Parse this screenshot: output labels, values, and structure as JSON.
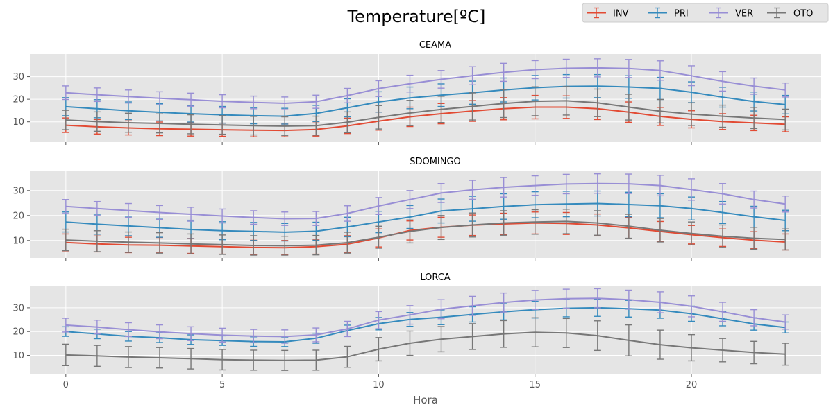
{
  "chart_data": {
    "type": "line",
    "title": "Temperature[ºC]",
    "xlabel": "Hora",
    "legend_position": "top-right",
    "grid": true,
    "x": [
      0,
      1,
      2,
      3,
      4,
      5,
      6,
      7,
      8,
      9,
      10,
      11,
      12,
      13,
      14,
      15,
      16,
      17,
      18,
      19,
      20,
      21,
      22,
      23
    ],
    "xlim": [
      -1.15,
      24.15
    ],
    "xticks": [
      0,
      5,
      10,
      15,
      20
    ],
    "yticks": [
      10,
      20,
      30
    ],
    "legend": [
      {
        "name": "INV",
        "color": "#E24A33"
      },
      {
        "name": "PRI",
        "color": "#348ABD"
      },
      {
        "name": "VER",
        "color": "#988ED5"
      },
      {
        "name": "OTO",
        "color": "#777777"
      }
    ],
    "panels": [
      {
        "title": "CEAMA",
        "ylim": [
          1,
          40
        ],
        "series": [
          {
            "name": "INV",
            "values": [
              8.5,
              7.8,
              7.3,
              6.9,
              6.7,
              6.5,
              6.3,
              6.2,
              6.6,
              8.2,
              10.3,
              12.2,
              13.6,
              14.8,
              15.8,
              16.5,
              16.5,
              15.8,
              14.3,
              12.4,
              11.1,
              10.1,
              9.5,
              8.9
            ],
            "errors": [
              3.2,
              3.2,
              3.1,
              3.0,
              3.0,
              2.9,
              2.9,
              2.8,
              2.9,
              3.4,
              4.0,
              4.3,
              4.5,
              4.6,
              4.9,
              5.2,
              5.0,
              4.8,
              4.5,
              4.0,
              3.8,
              3.5,
              3.4,
              3.3
            ]
          },
          {
            "name": "PRI",
            "values": [
              16.7,
              15.8,
              14.9,
              14.2,
              13.6,
              13.1,
              12.7,
              12.5,
              13.7,
              16.2,
              18.8,
              20.6,
              21.8,
              22.9,
              24.1,
              25.1,
              25.7,
              25.8,
              25.4,
              24.8,
              23.1,
              20.9,
              19.0,
              17.6
            ],
            "errors": [
              4.0,
              4.0,
              3.9,
              3.8,
              3.7,
              3.7,
              3.6,
              3.5,
              3.6,
              4.0,
              4.5,
              4.8,
              5.0,
              5.1,
              5.3,
              5.4,
              5.2,
              5.1,
              5.0,
              4.9,
              4.6,
              4.4,
              4.2,
              4.1
            ]
          },
          {
            "name": "VER",
            "values": [
              22.9,
              22.0,
              21.2,
              20.4,
              19.8,
              19.1,
              18.6,
              18.2,
              18.9,
              21.6,
              24.7,
              26.9,
              28.8,
              30.4,
              31.9,
              33.1,
              33.7,
              33.9,
              33.6,
              32.7,
              30.4,
              27.9,
              25.8,
              24.1
            ],
            "errors": [
              3.0,
              3.0,
              2.9,
              2.9,
              2.9,
              2.9,
              2.8,
              2.8,
              2.9,
              3.2,
              3.5,
              3.7,
              3.9,
              4.0,
              4.0,
              4.0,
              4.0,
              4.0,
              4.0,
              4.3,
              4.4,
              4.3,
              3.6,
              3.1
            ]
          },
          {
            "name": "OTO",
            "values": [
              10.8,
              10.1,
              9.6,
              9.3,
              8.9,
              8.6,
              8.3,
              8.1,
              8.3,
              9.8,
              12.0,
              13.9,
              15.5,
              16.8,
              18.1,
              19.1,
              19.3,
              18.4,
              16.5,
              14.7,
              13.4,
              12.5,
              11.7,
              11.0
            ],
            "errors": [
              4.3,
              4.3,
              4.2,
              4.2,
              4.2,
              4.1,
              4.1,
              4.1,
              4.2,
              4.6,
              5.2,
              5.6,
              5.8,
              6.0,
              6.2,
              6.4,
              6.3,
              6.1,
              5.7,
              5.2,
              5.0,
              4.9,
              4.7,
              4.6
            ]
          }
        ]
      },
      {
        "title": "SDOMINGO",
        "ylim": [
          3,
          38
        ],
        "series": [
          {
            "name": "INV",
            "values": [
              9.2,
              8.6,
              8.2,
              8.1,
              7.8,
              7.5,
              7.2,
              7.1,
              7.5,
              8.5,
              11.0,
              14.0,
              15.3,
              16.1,
              16.6,
              17.0,
              16.8,
              16.2,
              15.0,
              13.6,
              12.3,
              11.1,
              10.1,
              9.4
            ],
            "errors": [
              3.4,
              3.2,
              3.1,
              3.1,
              3.0,
              3.0,
              2.9,
              2.9,
              3.0,
              3.4,
              3.6,
              3.8,
              4.0,
              4.1,
              4.3,
              4.4,
              4.4,
              4.4,
              4.2,
              4.0,
              3.7,
              3.5,
              3.4,
              3.2
            ]
          },
          {
            "name": "PRI",
            "values": [
              17.4,
              16.5,
              15.8,
              15.1,
              14.4,
              13.9,
              13.6,
              13.3,
              13.7,
              15.4,
              17.4,
              19.4,
              21.8,
              22.7,
              23.6,
              24.3,
              24.6,
              24.8,
              24.4,
              23.9,
              22.8,
              21.2,
              19.5,
              18.0
            ],
            "errors": [
              4.0,
              4.0,
              3.9,
              3.8,
              3.7,
              3.6,
              3.6,
              3.5,
              3.6,
              3.9,
              4.3,
              4.6,
              4.8,
              5.0,
              5.1,
              5.2,
              5.1,
              5.0,
              4.9,
              4.8,
              4.6,
              4.4,
              4.2,
              4.1
            ]
          },
          {
            "name": "VER",
            "values": [
              23.6,
              22.8,
              22.0,
              21.2,
              20.5,
              19.8,
              19.2,
              18.7,
              18.8,
              20.8,
              23.8,
              26.4,
              29.0,
              30.3,
              31.3,
              32.0,
              32.6,
              32.8,
              32.7,
              32.0,
              30.4,
              28.7,
              26.4,
              24.6
            ],
            "errors": [
              2.8,
              2.8,
              2.8,
              2.8,
              2.8,
              2.8,
              2.7,
              2.7,
              2.8,
              3.1,
              3.4,
              3.6,
              3.8,
              3.8,
              3.9,
              3.9,
              3.9,
              3.9,
              3.9,
              4.1,
              4.3,
              4.1,
              3.4,
              3.2
            ]
          },
          {
            "name": "OTO",
            "values": [
              10.2,
              9.7,
              9.3,
              9.0,
              8.6,
              8.3,
              8.0,
              7.9,
              8.1,
              9.1,
              11.3,
              13.6,
              15.2,
              16.2,
              17.0,
              17.4,
              17.6,
              17.0,
              15.7,
              14.1,
              12.8,
              11.7,
              10.9,
              10.4
            ],
            "errors": [
              4.3,
              4.2,
              4.1,
              4.1,
              4.0,
              3.9,
              3.9,
              3.8,
              3.9,
              4.2,
              4.4,
              4.6,
              4.8,
              4.8,
              4.9,
              4.9,
              4.9,
              4.9,
              4.8,
              4.7,
              4.6,
              4.5,
              4.4,
              4.2
            ]
          }
        ]
      },
      {
        "title": "LORCA",
        "ylim": [
          2,
          39
        ],
        "series": [
          {
            "name": "INV",
            "values": [],
            "errors": []
          },
          {
            "name": "PRI",
            "values": [
              20.0,
              19.0,
              18.0,
              17.4,
              16.6,
              16.2,
              15.8,
              15.7,
              17.2,
              20.4,
              23.3,
              25.1,
              26.0,
              27.2,
              28.3,
              29.2,
              29.8,
              30.0,
              29.6,
              29.0,
              27.5,
              25.4,
              23.2,
              21.7
            ],
            "errors": [
              2.0,
              2.0,
              2.0,
              2.0,
              2.0,
              2.0,
              2.0,
              2.0,
              2.1,
              2.3,
              2.6,
              2.9,
              3.1,
              3.2,
              3.4,
              3.5,
              3.6,
              3.6,
              3.5,
              3.4,
              3.2,
              3.0,
              2.6,
              2.3
            ]
          },
          {
            "name": "VER",
            "values": [
              22.7,
              21.9,
              20.8,
              19.9,
              19.1,
              18.5,
              18.1,
              17.9,
              18.6,
              21.1,
              24.8,
              27.0,
              29.4,
              30.8,
              32.2,
              33.3,
              33.8,
              34.0,
              33.4,
              32.3,
              30.6,
              28.3,
              25.8,
              24.0
            ],
            "errors": [
              2.9,
              2.9,
              2.9,
              2.9,
              2.9,
              2.9,
              2.8,
              2.8,
              2.9,
              3.2,
              3.6,
              3.9,
              4.0,
              4.0,
              4.0,
              4.0,
              4.0,
              4.0,
              4.0,
              4.4,
              4.4,
              4.0,
              3.4,
              3.0
            ]
          },
          {
            "name": "OTO",
            "values": [
              10.2,
              9.8,
              9.3,
              9.0,
              8.6,
              8.2,
              8.0,
              7.9,
              8.0,
              9.4,
              12.6,
              15.1,
              16.8,
              17.9,
              19.0,
              19.7,
              19.4,
              18.3,
              16.3,
              14.5,
              13.2,
              12.2,
              11.2,
              10.5
            ],
            "errors": [
              4.5,
              4.4,
              4.4,
              4.3,
              4.3,
              4.3,
              4.2,
              4.2,
              4.2,
              4.4,
              4.9,
              5.1,
              5.3,
              5.4,
              5.6,
              6.1,
              6.1,
              6.2,
              6.5,
              6.1,
              5.5,
              4.9,
              4.7,
              4.6
            ]
          }
        ]
      }
    ]
  }
}
